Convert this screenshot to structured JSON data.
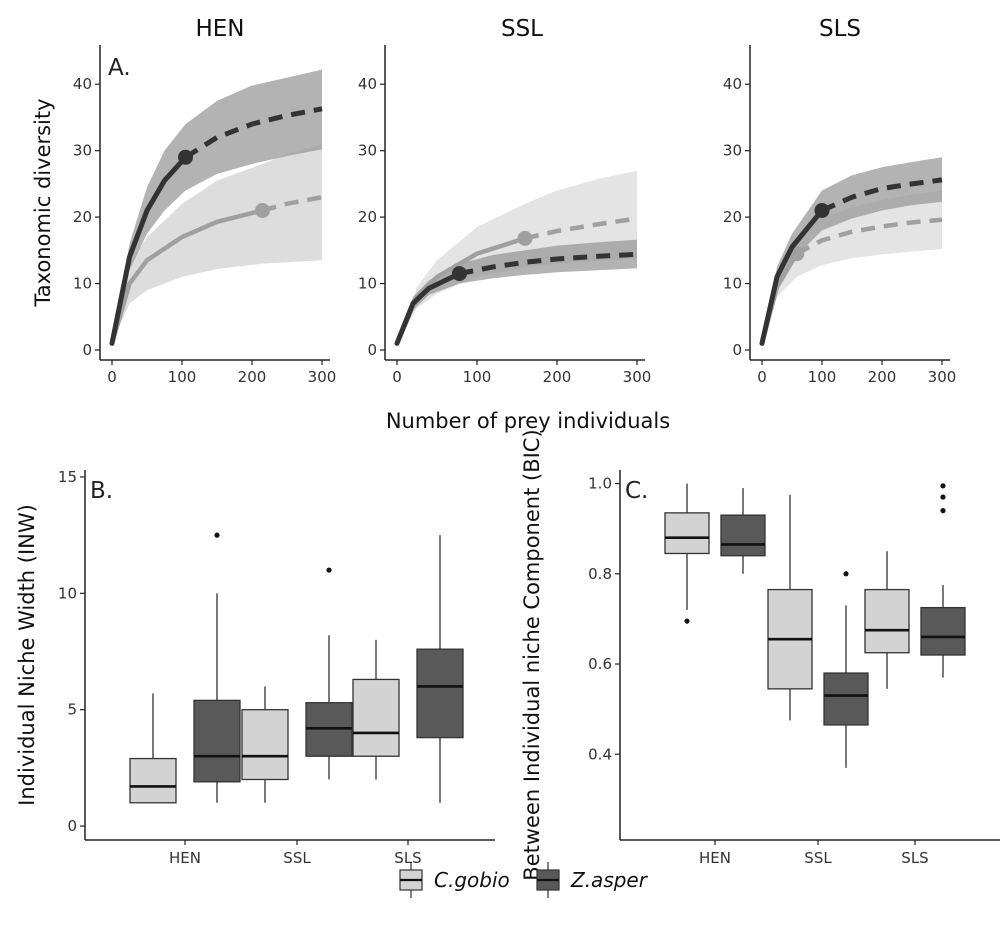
{
  "chart_data": [
    {
      "id": "panel-a-hen",
      "type": "line",
      "title": "HEN",
      "panel_label": "A.",
      "ylabel": "Taxonomic diversity",
      "xlim": [
        0,
        300
      ],
      "ylim": [
        0,
        45
      ],
      "xticks": [
        0,
        100,
        200,
        300
      ],
      "yticks": [
        0,
        10,
        20,
        30,
        40
      ],
      "series": [
        {
          "name": "Z.asper",
          "color": "#333333",
          "band_color": "#9a9a9a",
          "observed": {
            "x": 105,
            "y": 29
          },
          "x": [
            0,
            25,
            50,
            75,
            105,
            150,
            200,
            250,
            300
          ],
          "y": [
            1,
            14,
            21,
            25.5,
            29,
            32,
            34,
            35.3,
            36.3
          ],
          "lower": [
            1,
            12,
            17.5,
            21,
            24,
            26.5,
            28,
            29.2,
            30.2
          ],
          "upper": [
            1,
            16,
            24.5,
            30,
            34,
            37.5,
            39.8,
            41,
            42.2
          ]
        },
        {
          "name": "C.gobio",
          "color": "#a0a0a0",
          "band_color": "#cfcfcf",
          "observed": {
            "x": 215,
            "y": 21
          },
          "x": [
            0,
            25,
            50,
            100,
            150,
            215,
            250,
            300
          ],
          "y": [
            1,
            10,
            13.5,
            17,
            19.3,
            21,
            22,
            23
          ],
          "lower": [
            1,
            7,
            9,
            11,
            12.2,
            13,
            13.2,
            13.5
          ],
          "upper": [
            1,
            13,
            17,
            22,
            25.5,
            28,
            29.5,
            31
          ]
        }
      ]
    },
    {
      "id": "panel-a-ssl",
      "type": "line",
      "title": "SSL",
      "xlim": [
        0,
        300
      ],
      "ylim": [
        0,
        45
      ],
      "xticks": [
        0,
        100,
        200,
        300
      ],
      "yticks": [
        0,
        10,
        20,
        30,
        40
      ],
      "series": [
        {
          "name": "Z.asper",
          "color": "#333333",
          "band_color": "#9a9a9a",
          "observed": {
            "x": 78,
            "y": 11.5
          },
          "x": [
            0,
            20,
            40,
            78,
            120,
            160,
            200,
            250,
            300
          ],
          "y": [
            1,
            7,
            9.3,
            11.5,
            12.5,
            13.2,
            13.7,
            14.1,
            14.4
          ],
          "lower": [
            1,
            6,
            8.3,
            10,
            10.8,
            11.3,
            11.7,
            12,
            12.3
          ],
          "upper": [
            1,
            8,
            10.5,
            13,
            14.3,
            15,
            15.7,
            16.2,
            16.6
          ]
        },
        {
          "name": "C.gobio",
          "color": "#a0a0a0",
          "band_color": "#d8d8d8",
          "observed": {
            "x": 160,
            "y": 16.8
          },
          "x": [
            0,
            25,
            50,
            100,
            160,
            200,
            250,
            300
          ],
          "y": [
            1,
            8,
            11,
            14.5,
            16.8,
            17.9,
            18.9,
            19.8
          ],
          "lower": [
            1,
            6.3,
            8.5,
            11,
            12.5,
            13,
            13.4,
            13.8
          ],
          "upper": [
            1,
            9.5,
            13.5,
            18.5,
            22,
            24,
            25.7,
            27
          ]
        }
      ]
    },
    {
      "id": "panel-a-sls",
      "type": "line",
      "title": "SLS",
      "xlim": [
        0,
        300
      ],
      "ylim": [
        0,
        45
      ],
      "xticks": [
        0,
        100,
        200,
        300
      ],
      "yticks": [
        0,
        10,
        20,
        30,
        40
      ],
      "series": [
        {
          "name": "Z.asper",
          "color": "#333333",
          "band_color": "#9a9a9a",
          "observed": {
            "x": 100,
            "y": 21
          },
          "x": [
            0,
            25,
            50,
            100,
            150,
            200,
            250,
            300
          ],
          "y": [
            1,
            11,
            15.5,
            21,
            23,
            24.3,
            25,
            25.6
          ],
          "lower": [
            1,
            9.5,
            13.5,
            18,
            19.8,
            21,
            21.8,
            22.3
          ],
          "upper": [
            1,
            12.5,
            17.5,
            24,
            26.3,
            27.5,
            28.3,
            29
          ]
        },
        {
          "name": "C.gobio",
          "color": "#a0a0a0",
          "band_color": "#d8d8d8",
          "observed": {
            "x": 58,
            "y": 14.5
          },
          "x": [
            0,
            25,
            58,
            100,
            150,
            200,
            250,
            300
          ],
          "y": [
            1,
            9.5,
            14.5,
            16.5,
            17.8,
            18.6,
            19.2,
            19.6
          ],
          "lower": [
            1,
            8,
            11,
            12.8,
            13.8,
            14.4,
            14.8,
            15.2
          ],
          "upper": [
            1,
            11,
            17,
            19.8,
            21.5,
            22.6,
            23.4,
            24
          ]
        }
      ]
    },
    {
      "id": "panel-b",
      "type": "box",
      "panel_label": "B.",
      "ylabel": "Individual Niche Width (INW)",
      "ylim": [
        -0.6,
        15.3
      ],
      "yticks": [
        0,
        5,
        10,
        15
      ],
      "categories": [
        "HEN",
        "SSL",
        "SLS"
      ],
      "series": [
        {
          "name": "C.gobio",
          "color": "#d3d3d3",
          "boxes": [
            {
              "whisker_low": 1,
              "q1": 1,
              "median": 1.7,
              "q3": 2.9,
              "whisker_high": 5.7,
              "outliers": []
            },
            {
              "whisker_low": 1,
              "q1": 2,
              "median": 3,
              "q3": 5,
              "whisker_high": 6,
              "outliers": []
            },
            {
              "whisker_low": 2,
              "q1": 3,
              "median": 4,
              "q3": 6.3,
              "whisker_high": 8,
              "outliers": []
            }
          ]
        },
        {
          "name": "Z.asper",
          "color": "#595959",
          "boxes": [
            {
              "whisker_low": 1,
              "q1": 1.9,
              "median": 3,
              "q3": 5.4,
              "whisker_high": 10,
              "outliers": [
                12.5
              ]
            },
            {
              "whisker_low": 2,
              "q1": 3,
              "median": 4.2,
              "q3": 5.3,
              "whisker_high": 8.2,
              "outliers": [
                11
              ]
            },
            {
              "whisker_low": 1,
              "q1": 3.8,
              "median": 6,
              "q3": 7.6,
              "whisker_high": 12.5,
              "outliers": []
            }
          ]
        }
      ]
    },
    {
      "id": "panel-c",
      "type": "box",
      "panel_label": "C.",
      "ylabel": "Between Individual niche Component (BIC)",
      "ylim": [
        0.21,
        1.03
      ],
      "yticks": [
        0.4,
        0.6,
        0.8,
        1.0
      ],
      "ytick_labels": [
        "0.4",
        "0.6",
        "0.8",
        "1.0"
      ],
      "categories": [
        "HEN",
        "SSL",
        "SLS"
      ],
      "series": [
        {
          "name": "C.gobio",
          "color": "#d3d3d3",
          "boxes": [
            {
              "whisker_low": 0.72,
              "q1": 0.845,
              "median": 0.88,
              "q3": 0.935,
              "whisker_high": 1.0,
              "outliers": [
                0.695
              ]
            },
            {
              "whisker_low": 0.475,
              "q1": 0.545,
              "median": 0.655,
              "q3": 0.765,
              "whisker_high": 0.975,
              "outliers": []
            },
            {
              "whisker_low": 0.545,
              "q1": 0.625,
              "median": 0.675,
              "q3": 0.765,
              "whisker_high": 0.85,
              "outliers": []
            }
          ]
        },
        {
          "name": "Z.asper",
          "color": "#595959",
          "boxes": [
            {
              "whisker_low": 0.8,
              "q1": 0.84,
              "median": 0.865,
              "q3": 0.93,
              "whisker_high": 0.99,
              "outliers": []
            },
            {
              "whisker_low": 0.37,
              "q1": 0.465,
              "median": 0.53,
              "q3": 0.58,
              "whisker_high": 0.73,
              "outliers": [
                0.8
              ]
            },
            {
              "whisker_low": 0.57,
              "q1": 0.62,
              "median": 0.66,
              "q3": 0.725,
              "whisker_high": 0.775,
              "outliers": [
                0.94,
                0.97,
                0.995
              ]
            }
          ]
        }
      ]
    }
  ],
  "figure": {
    "shared_xlabel": "Number of prey individuals",
    "legend": {
      "position": "bottom",
      "items": [
        "C.gobio",
        "Z.asper"
      ]
    }
  }
}
